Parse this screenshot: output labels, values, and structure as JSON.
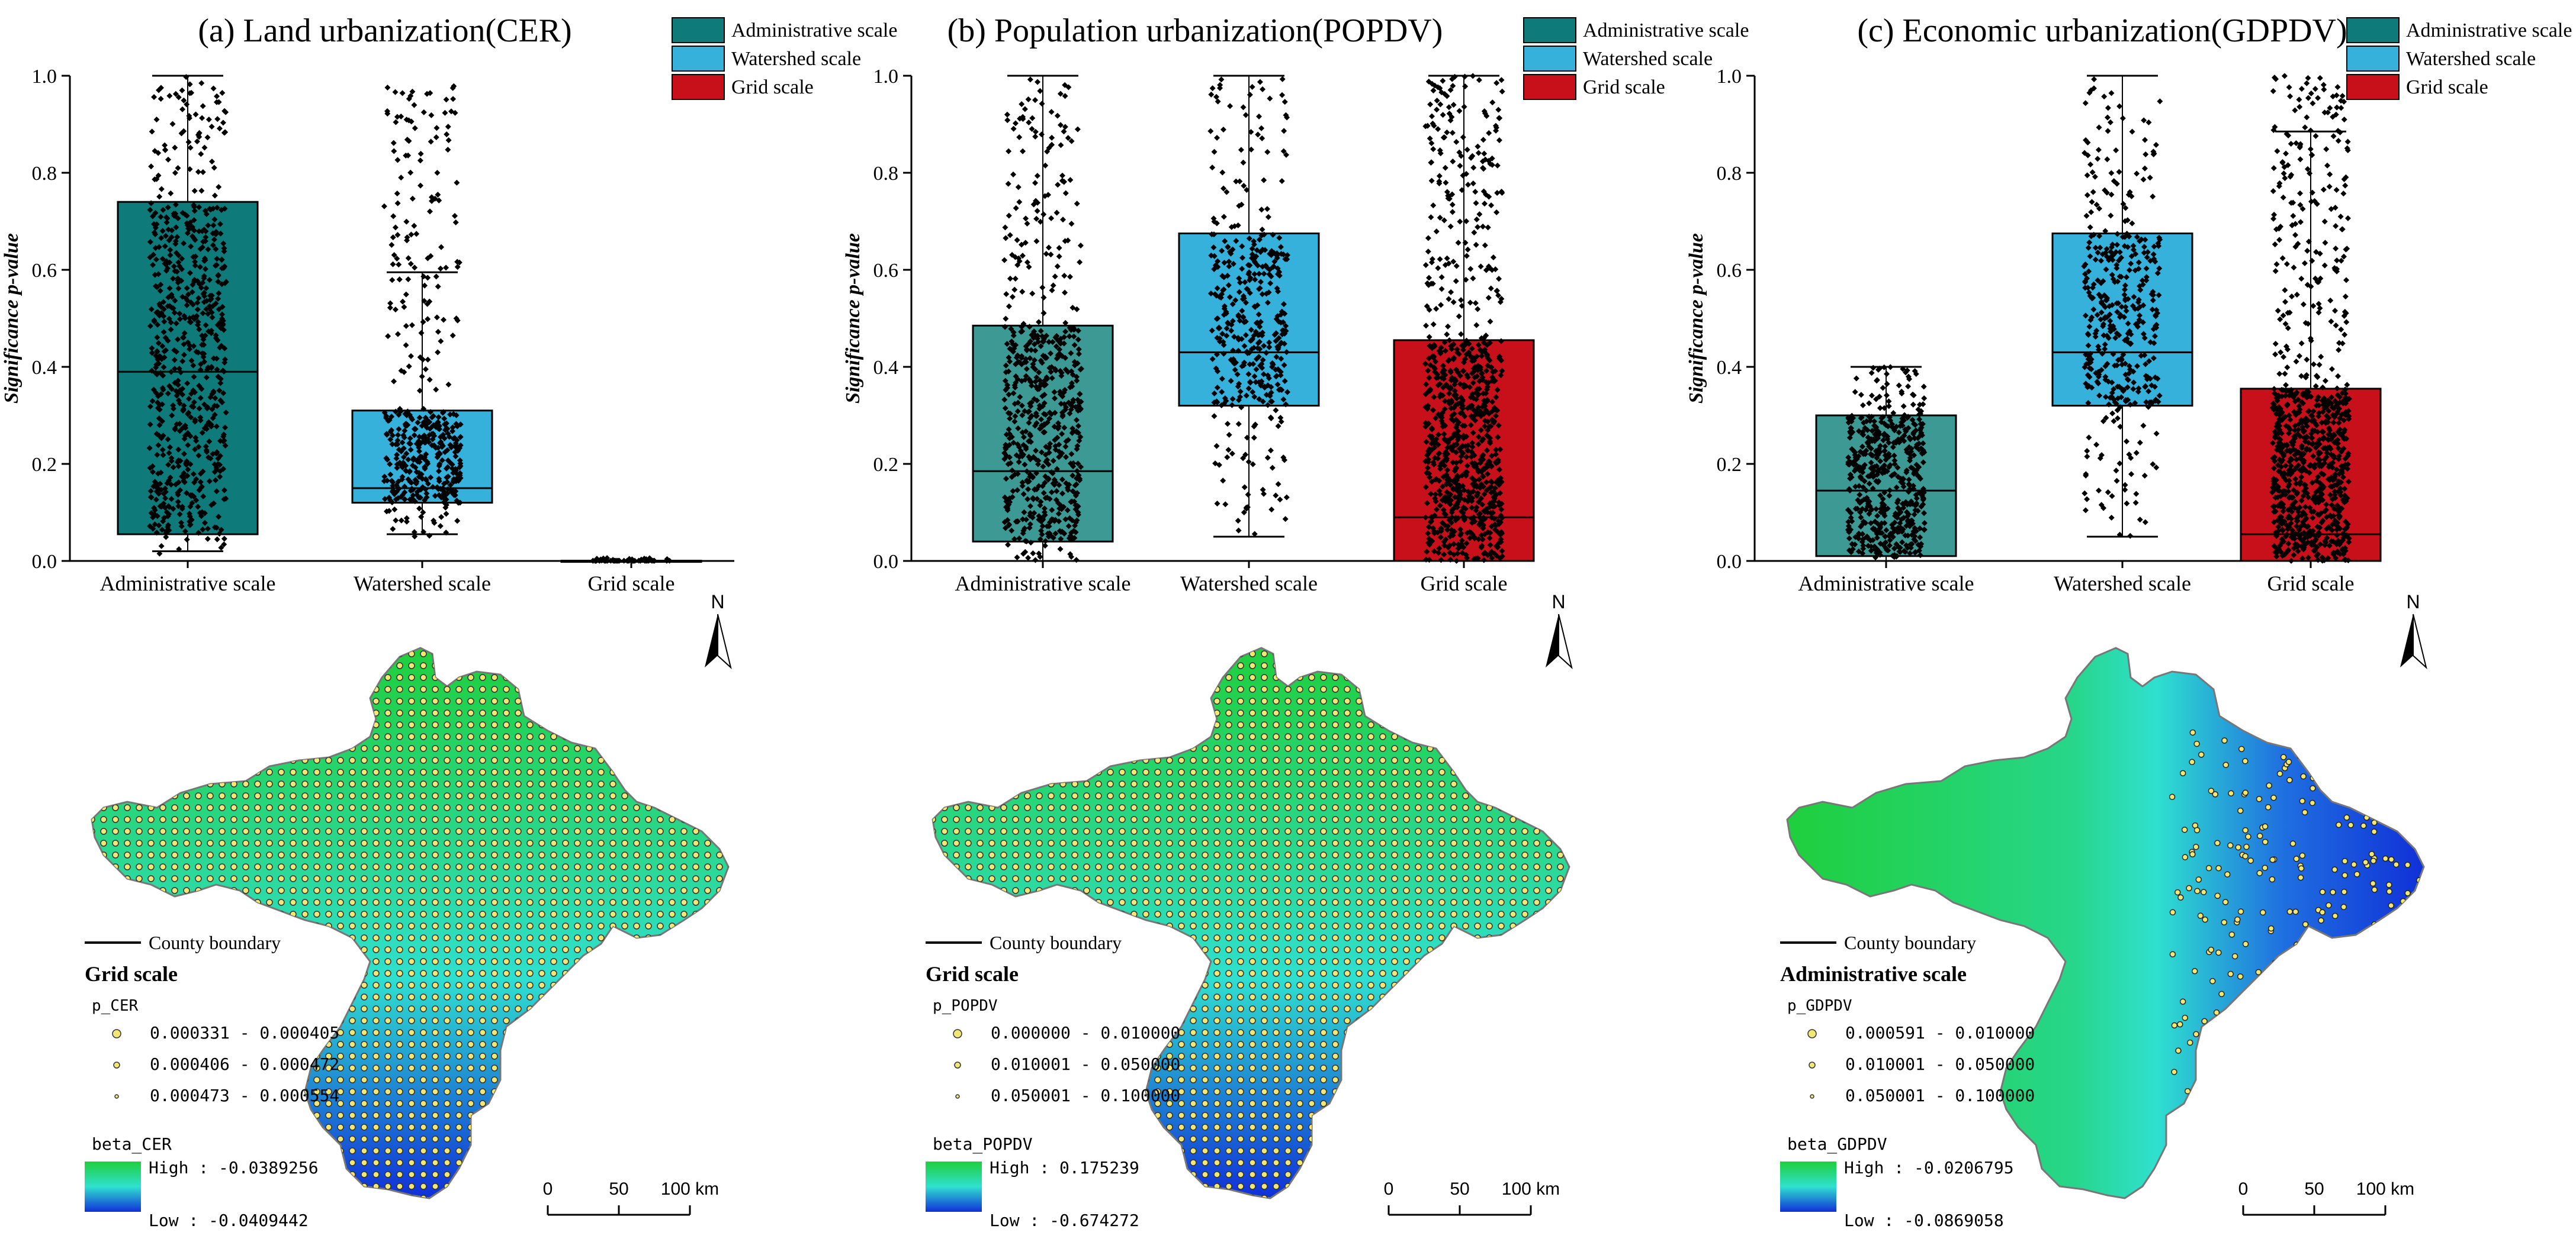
{
  "chart_data": [
    {
      "type": "box",
      "title": "(a) Land urbanization(CER)",
      "ylabel": "Significance p-value",
      "ylim": [
        0,
        1
      ],
      "yticks": [
        "0.0",
        "0.2",
        "0.4",
        "0.6",
        "0.8",
        "1.0"
      ],
      "categories": [
        "Administrative scale",
        "Watershed scale",
        "Grid scale"
      ],
      "legend": [
        "Administrative scale",
        "Watershed scale",
        "Grid scale"
      ],
      "boxes": [
        {
          "name": "Administrative scale",
          "color": "#0e7a7a",
          "whisker_low": 0.02,
          "q1": 0.055,
          "median": 0.39,
          "q3": 0.74,
          "whisker_high": 1.0,
          "pts_lo": 0.01,
          "pts_hi": 1.0,
          "n": 700
        },
        {
          "name": "Watershed scale",
          "color": "#35b1dc",
          "whisker_low": 0.055,
          "q1": 0.12,
          "median": 0.15,
          "q3": 0.31,
          "whisker_high": 0.595,
          "pts_lo": 0.05,
          "pts_hi": 0.98,
          "n": 480
        },
        {
          "name": "Grid scale",
          "color": "#c8101a",
          "whisker_low": 0.0003,
          "q1": 0.0003,
          "median": 0.0004,
          "q3": 0.0005,
          "whisker_high": 0.0006,
          "pts_lo": 0.0,
          "pts_hi": 0.006,
          "n": 60
        }
      ]
    },
    {
      "type": "box",
      "title": "(b) Population urbanization(POPDV)",
      "ylabel": "Significance p-value",
      "ylim": [
        0,
        1
      ],
      "yticks": [
        "0.0",
        "0.2",
        "0.4",
        "0.6",
        "0.8",
        "1.0"
      ],
      "categories": [
        "Administrative scale",
        "Watershed scale",
        "Grid scale"
      ],
      "legend": [
        "Administrative scale",
        "Watershed scale",
        "Grid scale"
      ],
      "boxes": [
        {
          "name": "Administrative scale",
          "color": "#3d9994",
          "whisker_low": 0.0,
          "q1": 0.04,
          "median": 0.185,
          "q3": 0.485,
          "whisker_high": 1.0,
          "pts_lo": 0.0,
          "pts_hi": 1.0,
          "n": 650
        },
        {
          "name": "Watershed scale",
          "color": "#35b1dc",
          "whisker_low": 0.05,
          "q1": 0.32,
          "median": 0.43,
          "q3": 0.675,
          "whisker_high": 1.0,
          "pts_lo": 0.05,
          "pts_hi": 1.0,
          "n": 420
        },
        {
          "name": "Grid scale",
          "color": "#c8101a",
          "whisker_low": 0.0,
          "q1": 0.0,
          "median": 0.09,
          "q3": 0.455,
          "whisker_high": 1.0,
          "pts_lo": 0.0,
          "pts_hi": 1.0,
          "n": 900
        }
      ]
    },
    {
      "type": "box",
      "title": "(c) Economic urbanization(GDPDV)",
      "ylabel": "Significance p-value",
      "ylim": [
        0,
        1
      ],
      "yticks": [
        "0.0",
        "0.2",
        "0.4",
        "0.6",
        "0.8",
        "1.0"
      ],
      "categories": [
        "Administrative scale",
        "Watershed scale",
        "Grid scale"
      ],
      "legend": [
        "Administrative scale",
        "Watershed scale",
        "Grid scale"
      ],
      "boxes": [
        {
          "name": "Administrative scale",
          "color": "#3d9994",
          "whisker_low": 0.0,
          "q1": 0.01,
          "median": 0.145,
          "q3": 0.3,
          "whisker_high": 0.4,
          "pts_lo": 0.0,
          "pts_hi": 0.4,
          "n": 550
        },
        {
          "name": "Watershed scale",
          "color": "#35b1dc",
          "whisker_low": 0.05,
          "q1": 0.32,
          "median": 0.43,
          "q3": 0.675,
          "whisker_high": 1.0,
          "pts_lo": 0.05,
          "pts_hi": 1.0,
          "n": 420
        },
        {
          "name": "Grid scale",
          "color": "#c8101a",
          "whisker_low": 0.0,
          "q1": 0.0,
          "median": 0.055,
          "q3": 0.355,
          "whisker_high": 0.885,
          "pts_lo": 0.0,
          "pts_hi": 1.0,
          "n": 900
        }
      ]
    }
  ],
  "maps": [
    {
      "north": "N",
      "boundary_label": "County boundary",
      "scale_title": "Grid scale",
      "p_field": "p_CER",
      "p_classes": [
        "0.000331 - 0.000405",
        "0.000406 - 0.000472",
        "0.000473 - 0.000554"
      ],
      "beta_field": "beta_CER",
      "beta_high": "High : -0.0389256",
      "beta_low": "Low : -0.0409442",
      "scalebar": [
        "0",
        "50",
        "100 km"
      ],
      "gradient": "ns",
      "colors": {
        "high": "#1fcf3c",
        "mid": "#2fe0cf",
        "low": "#1030d8"
      }
    },
    {
      "north": "N",
      "boundary_label": "County boundary",
      "scale_title": "Grid scale",
      "p_field": "p_POPDV",
      "p_classes": [
        "0.000000 - 0.010000",
        "0.010001 - 0.050000",
        "0.050001 - 0.100000"
      ],
      "beta_field": "beta_POPDV",
      "beta_high": "High : 0.175239",
      "beta_low": "Low : -0.674272",
      "scalebar": [
        "0",
        "50",
        "100 km"
      ],
      "gradient": "ns",
      "colors": {
        "high": "#1fcf3c",
        "mid": "#2fe0cf",
        "low": "#1030d8"
      }
    },
    {
      "north": "N",
      "boundary_label": "County boundary",
      "scale_title": "Administrative scale",
      "p_field": "p_GDPDV",
      "p_classes": [
        "0.000591 - 0.010000",
        "0.010001 - 0.050000",
        "0.050001 - 0.100000"
      ],
      "beta_field": "beta_GDPDV",
      "beta_high": "High : -0.0206795",
      "beta_low": "Low : -0.0869058",
      "scalebar": [
        "0",
        "50",
        "100 km"
      ],
      "gradient": "we",
      "colors": {
        "high": "#1fcf3c",
        "mid": "#2fe0cf",
        "low": "#1030d8"
      }
    }
  ]
}
